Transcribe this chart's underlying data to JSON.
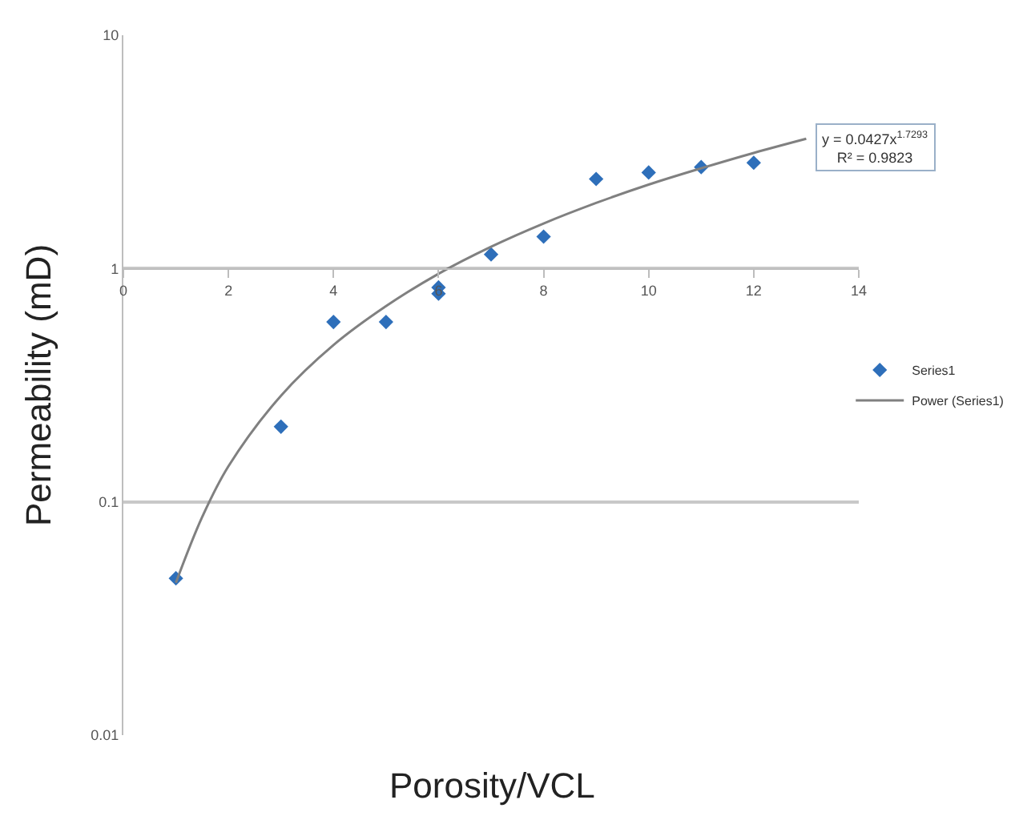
{
  "chart_data": {
    "type": "scatter",
    "xlabel": "Porosity/VCL",
    "ylabel": "Permeability (mD)",
    "x": [
      1,
      3,
      4,
      5,
      6,
      6,
      7,
      8,
      9,
      10,
      11,
      12
    ],
    "series": [
      {
        "name": "Series1",
        "color": "#2e6fba",
        "marker": "diamond",
        "values": [
          0.047,
          0.21,
          0.59,
          0.59,
          0.83,
          0.78,
          1.15,
          1.37,
          2.42,
          2.58,
          2.72,
          2.84
        ]
      },
      {
        "name": "Power (Series1)",
        "type": "line",
        "color": "#808080",
        "marker": "none",
        "line_style": "solid",
        "x": [
          1,
          1.5,
          2,
          3,
          4,
          5,
          6,
          7,
          8,
          9,
          10,
          11,
          12,
          13
        ],
        "values": [
          0.045,
          0.086,
          0.142,
          0.285,
          0.47,
          0.69,
          0.95,
          1.24,
          1.56,
          1.91,
          2.29,
          2.69,
          3.13,
          3.6
        ]
      }
    ],
    "annotations": [
      "y = 0.0427x$^{1.7293}$\nR² = 0.9823"
    ],
    "xlim": [
      0,
      14
    ],
    "xticks": [
      0,
      2,
      4,
      6,
      8,
      10,
      12,
      14
    ],
    "ylim": [
      0.01,
      10
    ],
    "yticks": [
      0.01,
      0.1,
      1,
      10
    ],
    "log": "y",
    "grid": "y",
    "legend": "right"
  }
}
